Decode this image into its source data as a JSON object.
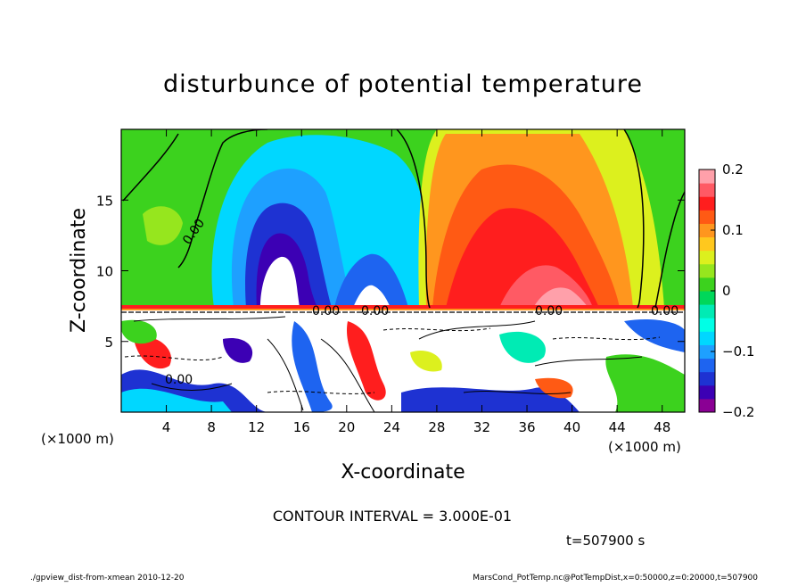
{
  "chart_data": {
    "type": "heatmap",
    "title": "disturbunce of potential temperature",
    "xlabel": "X-coordinate",
    "ylabel": "Z-coordinate",
    "x_unit": "(×1000 m)",
    "y_unit": "(×1000 m)",
    "xlim": [
      0,
      50
    ],
    "ylim": [
      0,
      20
    ],
    "x_ticks": [
      4,
      8,
      12,
      16,
      20,
      24,
      28,
      32,
      36,
      40,
      44,
      48
    ],
    "y_ticks": [
      5,
      10,
      15
    ],
    "colorbar": {
      "range": [
        -0.2,
        0.2
      ],
      "ticks": [
        {
          "value": 0.2,
          "label": "0.2"
        },
        {
          "value": 0.1,
          "label": "0.1"
        },
        {
          "value": 0,
          "label": "0"
        },
        {
          "value": -0.1,
          "label": "−0.1"
        },
        {
          "value": -0.2,
          "label": "−0.2"
        }
      ],
      "colors": [
        "#8a0094",
        "#3c00b4",
        "#1e32d2",
        "#1e64f0",
        "#1ea0ff",
        "#00d7ff",
        "#00ffe6",
        "#00ebb4",
        "#00d75a",
        "#3cd21e",
        "#96e61e",
        "#dcf01e",
        "#ffc81e",
        "#ff961e",
        "#ff5a14",
        "#ff1e1e",
        "#ff5a64",
        "#ffa0aa"
      ]
    },
    "contour_interval_label": "CONTOUR INTERVAL = 3.000E-01",
    "time_label": "t=507900 s",
    "contour_labels": [
      "0.00",
      "0.00",
      "0.00",
      "0.00",
      "0.00",
      "0.00"
    ]
  },
  "footer": {
    "left": "./gpview_dist-from-xmean  2010-12-20",
    "right": "MarsCond_PotTemp.nc@PotTempDist,x=0:50000,z=0:20000,t=507900"
  }
}
